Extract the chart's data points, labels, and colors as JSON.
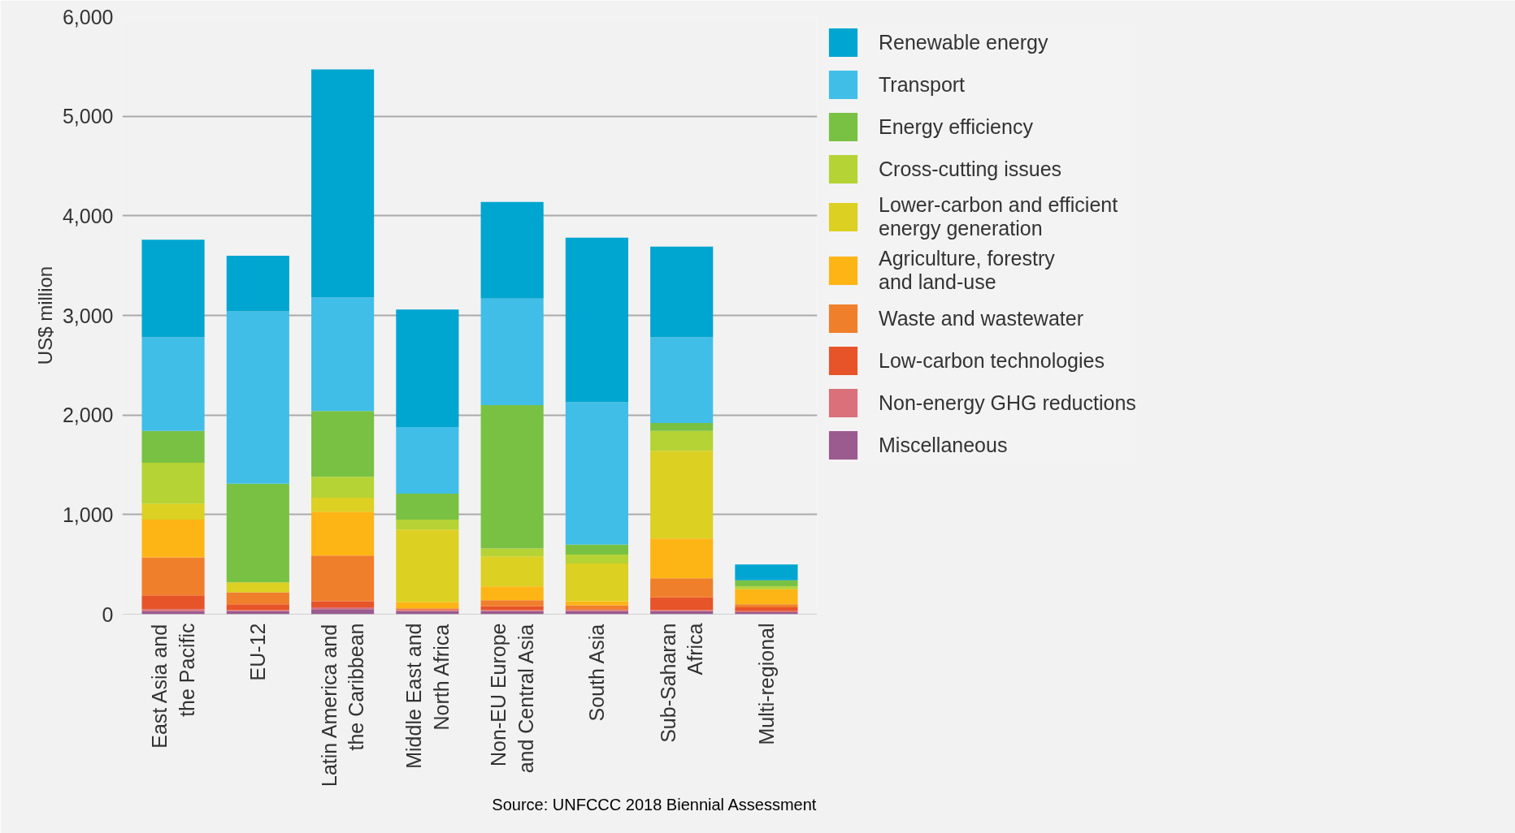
{
  "chart_data": {
    "type": "bar",
    "stacked": true,
    "ylabel": "US$ million",
    "categories": [
      "East Asia and\nthe Pacific",
      "EU-12",
      "Latin America and\nthe Caribbean",
      "Middle East and\nNorth Africa",
      "Non-EU Europe\nand Central Asia",
      "South Asia",
      "Sub-Saharan\nAfrica",
      "Multi-regional"
    ],
    "series": [
      {
        "name": "Miscellaneous",
        "color": "#9b5b8f",
        "values": [
          30,
          30,
          50,
          30,
          30,
          30,
          30,
          20
        ]
      },
      {
        "name": "Non-energy GHG reductions",
        "color": "#d9707a",
        "values": [
          20,
          10,
          20,
          10,
          10,
          10,
          10,
          10
        ]
      },
      {
        "name": "Low-carbon technologies",
        "color": "#e8542a",
        "values": [
          140,
          60,
          60,
          10,
          40,
          10,
          130,
          40
        ]
      },
      {
        "name": "Waste and wastewater",
        "color": "#f07f2b",
        "values": [
          380,
          120,
          460,
          10,
          60,
          40,
          190,
          30
        ]
      },
      {
        "name": "Agriculture, forestry\nand land-use",
        "color": "#fdb515",
        "values": [
          380,
          0,
          440,
          60,
          140,
          40,
          400,
          150
        ]
      },
      {
        "name": "Lower-carbon and efficient\nenergy generation",
        "color": "#dcd022",
        "values": [
          160,
          100,
          140,
          730,
          300,
          380,
          880,
          0
        ]
      },
      {
        "name": "Cross-cutting issues",
        "color": "#b5d334",
        "values": [
          410,
          0,
          210,
          100,
          80,
          90,
          200,
          30
        ]
      },
      {
        "name": "Energy efficiency",
        "color": "#79c143",
        "values": [
          320,
          990,
          660,
          260,
          1440,
          100,
          80,
          60
        ]
      },
      {
        "name": "Transport",
        "color": "#41bee8",
        "values": [
          940,
          1730,
          1140,
          670,
          1070,
          1430,
          860,
          0
        ]
      },
      {
        "name": "Renewable energy",
        "color": "#00a5d0",
        "values": [
          980,
          560,
          2290,
          1180,
          970,
          1650,
          910,
          160
        ]
      }
    ],
    "ylim": [
      0,
      6000
    ],
    "yticks": [
      0,
      {
        "value": 1000,
        "label": "1,000"
      },
      {
        "value": 2000,
        "label": "2,000"
      },
      {
        "value": 3000,
        "label": "3,000"
      },
      {
        "value": 4000,
        "label": "4,000"
      },
      {
        "value": 5000,
        "label": "5,000"
      },
      {
        "value": 6000,
        "label": "6,000"
      }
    ],
    "grid": "y",
    "legend": "top right",
    "annotations": [
      "Source: UNFCCC 2018 Biennial Assessment"
    ]
  }
}
